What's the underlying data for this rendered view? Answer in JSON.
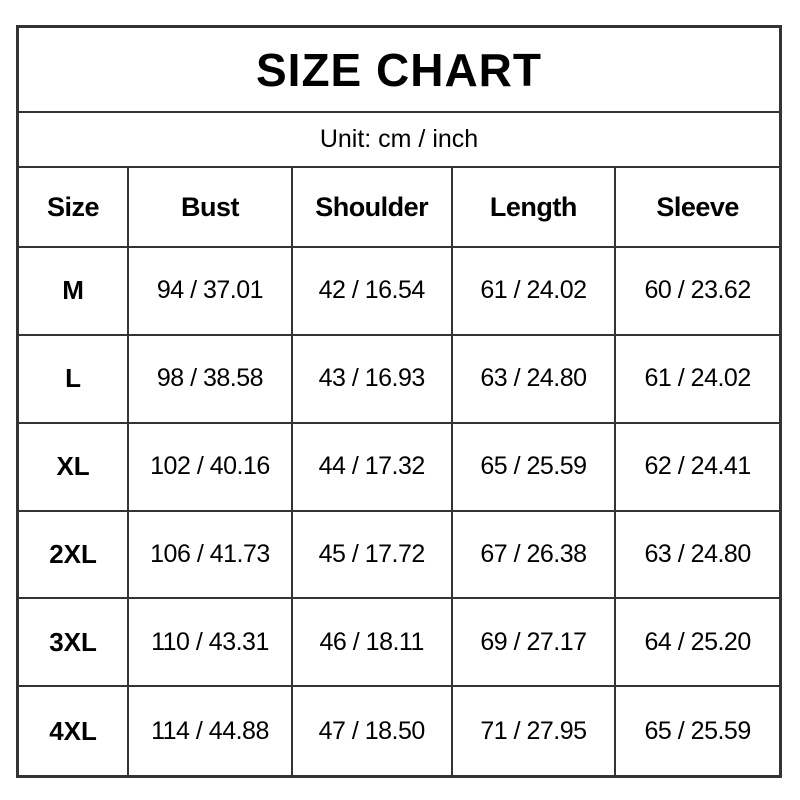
{
  "title": "SIZE CHART",
  "unit_label": "Unit: cm / inch",
  "colors": {
    "background": "#ffffff",
    "text": "#000000",
    "border": "#333333"
  },
  "chart_data": {
    "type": "table",
    "title": "SIZE CHART",
    "unit": "Unit: cm / inch",
    "columns": [
      "Size",
      "Bust",
      "Shoulder",
      "Length",
      "Sleeve"
    ],
    "rows": [
      [
        "M",
        "94 / 37.01",
        "42 / 16.54",
        "61 / 24.02",
        "60 / 23.62"
      ],
      [
        "L",
        "98 / 38.58",
        "43 / 16.93",
        "63 / 24.80",
        "61 / 24.02"
      ],
      [
        "XL",
        "102 / 40.16",
        "44 / 17.32",
        "65 / 25.59",
        "62 / 24.41"
      ],
      [
        "2XL",
        "106 / 41.73",
        "45 / 17.72",
        "67 / 26.38",
        "63 / 24.80"
      ],
      [
        "3XL",
        "110 / 43.31",
        "46 / 18.11",
        "69 / 27.17",
        "64 / 25.20"
      ],
      [
        "4XL",
        "114 / 44.88",
        "47 / 18.50",
        "71 / 27.95",
        "65 / 25.59"
      ]
    ]
  }
}
